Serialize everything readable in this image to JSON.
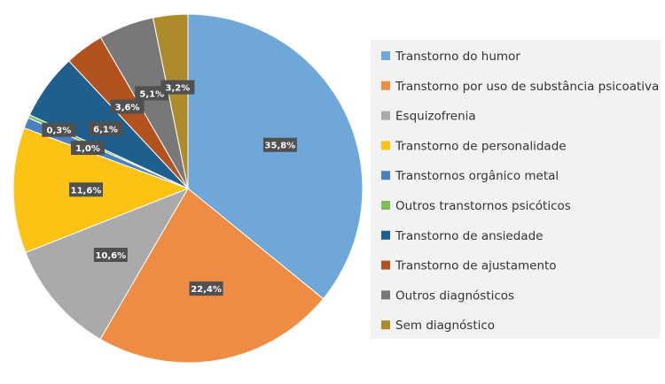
{
  "chart_data": {
    "type": "pie",
    "categories": [
      "Transtorno do humor",
      "Transtorno por uso de substância psicoativa",
      "Esquizofrenia",
      "Transtorno de personalidade",
      "Transtornos orgânico metal",
      "Outros transtornos psicóticos",
      "Transtorno de ansiedade",
      "Transtorno de ajustamento",
      "Outros diagnósticos",
      "Sem diagnóstico"
    ],
    "values": [
      35.8,
      22.4,
      10.6,
      11.6,
      1.0,
      0.3,
      6.1,
      3.6,
      5.1,
      3.2
    ],
    "value_labels": [
      "35,8%",
      "22,4%",
      "10,6%",
      "11,6%",
      "1,0%",
      "0,3%",
      "6,1%",
      "3,6%",
      "5,1%",
      "3,2%"
    ],
    "colors": [
      "#6ea7d8",
      "#ee8c43",
      "#aaaaaa",
      "#fcc314",
      "#4c80c0",
      "#7cc05a",
      "#1f5f8e",
      "#b2531f",
      "#787878",
      "#ad8b2c"
    ],
    "legend": "right"
  }
}
